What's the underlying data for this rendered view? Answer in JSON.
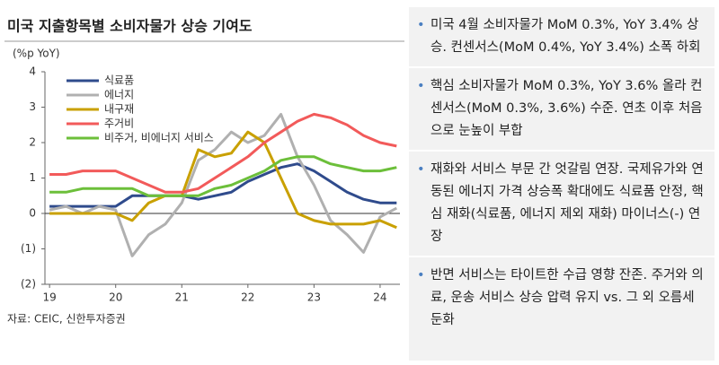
{
  "chart_data": {
    "type": "line",
    "title": "미국 지출항목별 소비자물가 상승 기여도",
    "y_label": "(%p YoY)",
    "x": [
      19,
      19.25,
      19.5,
      19.75,
      20,
      20.25,
      20.5,
      20.75,
      21,
      21.25,
      21.5,
      21.75,
      22,
      22.25,
      22.5,
      22.75,
      23,
      23.25,
      23.5,
      23.75,
      24,
      24.25
    ],
    "xlim": [
      18.93,
      24.3
    ],
    "xticks": [
      19,
      20,
      21,
      22,
      23,
      24
    ],
    "ylim": [
      -2,
      4
    ],
    "yticks": [
      4,
      3,
      2,
      1,
      0,
      {
        "value": -1,
        "label": "(1)"
      },
      {
        "value": -2,
        "label": "(2)"
      }
    ],
    "legend": "top-left",
    "series": [
      {
        "name": "식료품",
        "color": "#2f4b8c",
        "values": [
          0.2,
          0.2,
          0.2,
          0.2,
          0.2,
          0.5,
          0.5,
          0.5,
          0.5,
          0.4,
          0.5,
          0.6,
          0.9,
          1.1,
          1.3,
          1.4,
          1.2,
          0.9,
          0.6,
          0.4,
          0.3,
          0.3
        ]
      },
      {
        "name": "에너지",
        "color": "#b0b0b0",
        "values": [
          0.1,
          0.2,
          0.0,
          0.2,
          0.1,
          -1.2,
          -0.6,
          -0.3,
          0.3,
          1.5,
          1.8,
          2.3,
          2.0,
          2.2,
          2.8,
          1.6,
          0.8,
          -0.2,
          -0.6,
          -1.1,
          -0.1,
          0.15
        ]
      },
      {
        "name": "내구재",
        "color": "#c9a000",
        "values": [
          0.0,
          0.0,
          0.0,
          0.0,
          0.0,
          -0.2,
          0.3,
          0.5,
          0.5,
          1.8,
          1.6,
          1.7,
          2.3,
          2.0,
          1.0,
          0.0,
          -0.2,
          -0.3,
          -0.3,
          -0.3,
          -0.2,
          -0.4
        ]
      },
      {
        "name": "주거비",
        "color": "#f25a5a",
        "values": [
          1.1,
          1.1,
          1.2,
          1.2,
          1.2,
          1.0,
          0.8,
          0.6,
          0.6,
          0.7,
          1.0,
          1.3,
          1.6,
          2.0,
          2.3,
          2.6,
          2.8,
          2.7,
          2.5,
          2.2,
          2.0,
          1.9
        ]
      },
      {
        "name": "비주거, 비에너지 서비스",
        "color": "#6cbf3a",
        "values": [
          0.6,
          0.6,
          0.7,
          0.7,
          0.7,
          0.7,
          0.5,
          0.5,
          0.5,
          0.5,
          0.7,
          0.8,
          1.0,
          1.2,
          1.5,
          1.6,
          1.6,
          1.4,
          1.3,
          1.2,
          1.2,
          1.3
        ]
      }
    ],
    "source": "자료: CEIC, 신한투자증권"
  },
  "bullets": [
    "미국 4월 소비자물가 MoM 0.3%, YoY 3.4% 상승. 컨센서스(MoM 0.4%, YoY 3.4%) 소폭 하회",
    "핵심 소비자물가 MoM 0.3%, YoY 3.6% 올라 컨센서스(MoM 0.3%, 3.6%) 수준. 연초 이후 처음으로 눈높이 부합",
    "재화와 서비스 부문 간 엇갈림 연장. 국제유가와 연동된 에너지 가격 상승폭 확대에도 식료품 안정, 핵심 재화(식료품, 에너지 제외 재화) 마이너스(-) 연장",
    "반면 서비스는 타이트한 수급 영향 잔존. 주거와 의료, 운송 서비스 상승 압력 유지 vs. 그 외 오름세 둔화"
  ]
}
